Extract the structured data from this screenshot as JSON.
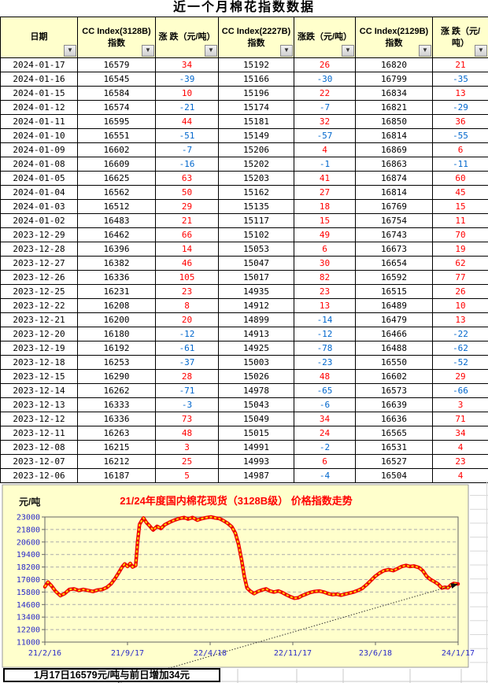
{
  "page": {
    "title": "近一个月棉花指数数据"
  },
  "table": {
    "columns": [
      "日期",
      "CC Index(3128B) 指数",
      "涨 跌（元/吨）",
      "CC Index(2227B) 指数",
      "涨跌（元/吨）",
      "CC Index(2129B) 指数",
      "涨 跌（元/吨）"
    ],
    "rows": [
      [
        "2024-01-17",
        16579,
        34,
        15192,
        26,
        16820,
        21
      ],
      [
        "2024-01-16",
        16545,
        -39,
        15166,
        -30,
        16799,
        -35
      ],
      [
        "2024-01-15",
        16584,
        10,
        15196,
        22,
        16834,
        13
      ],
      [
        "2024-01-12",
        16574,
        -21,
        15174,
        -7,
        16821,
        -29
      ],
      [
        "2024-01-11",
        16595,
        44,
        15181,
        32,
        16850,
        36
      ],
      [
        "2024-01-10",
        16551,
        -51,
        15149,
        -57,
        16814,
        -55
      ],
      [
        "2024-01-09",
        16602,
        -7,
        15206,
        4,
        16869,
        6
      ],
      [
        "2024-01-08",
        16609,
        -16,
        15202,
        -1,
        16863,
        -11
      ],
      [
        "2024-01-05",
        16625,
        63,
        15203,
        41,
        16874,
        60
      ],
      [
        "2024-01-04",
        16562,
        50,
        15162,
        27,
        16814,
        45
      ],
      [
        "2024-01-03",
        16512,
        29,
        15135,
        18,
        16769,
        15
      ],
      [
        "2024-01-02",
        16483,
        21,
        15117,
        15,
        16754,
        11
      ],
      [
        "2023-12-29",
        16462,
        66,
        15102,
        49,
        16743,
        70
      ],
      [
        "2023-12-28",
        16396,
        14,
        15053,
        6,
        16673,
        19
      ],
      [
        "2023-12-27",
        16382,
        46,
        15047,
        30,
        16654,
        62
      ],
      [
        "2023-12-26",
        16336,
        105,
        15017,
        82,
        16592,
        77
      ],
      [
        "2023-12-25",
        16231,
        23,
        14935,
        23,
        16515,
        26
      ],
      [
        "2023-12-22",
        16208,
        8,
        14912,
        13,
        16489,
        10
      ],
      [
        "2023-12-21",
        16200,
        20,
        14899,
        -14,
        16479,
        13
      ],
      [
        "2023-12-20",
        16180,
        -12,
        14913,
        -12,
        16466,
        -22
      ],
      [
        "2023-12-19",
        16192,
        -61,
        14925,
        -78,
        16488,
        -62
      ],
      [
        "2023-12-18",
        16253,
        -37,
        15003,
        -23,
        16550,
        -52
      ],
      [
        "2023-12-15",
        16290,
        28,
        15026,
        48,
        16602,
        29
      ],
      [
        "2023-12-14",
        16262,
        -71,
        14978,
        -65,
        16573,
        -66
      ],
      [
        "2023-12-13",
        16333,
        -3,
        15043,
        -6,
        16639,
        3
      ],
      [
        "2023-12-12",
        16336,
        73,
        15049,
        34,
        16636,
        71
      ],
      [
        "2023-12-11",
        16263,
        48,
        15015,
        24,
        16565,
        34
      ],
      [
        "2023-12-08",
        16215,
        3,
        14991,
        -2,
        16531,
        4
      ],
      [
        "2023-12-07",
        16212,
        25,
        14993,
        6,
        16527,
        23
      ],
      [
        "2023-12-06",
        16187,
        5,
        14987,
        -4,
        16504,
        4
      ]
    ]
  },
  "footer": {
    "note": "1月17日16579元/吨与前日增加34元"
  },
  "colors": {
    "positive": "#FF0000",
    "negative": "#0066CC",
    "header_bg": "#FFFFCC",
    "chart_bg": "#FFFFCC",
    "chart_title": "#FF0000",
    "axis_label": "#2929C8",
    "line": "#EE0000",
    "line_dash": "#FFD700"
  },
  "chart_data": {
    "type": "line",
    "title": "21/24年度国内棉花现货（3128B级） 价格指数走势",
    "ylabel": "元/吨",
    "ylim": [
      11000,
      23000
    ],
    "ytick_step": 1200,
    "xtick_labels": [
      "21/2/16",
      "21/9/17",
      "22/4/18",
      "22/11/17",
      "23/6/18",
      "24/1/17"
    ],
    "x_range": [
      "2021-02-16",
      "2024-01-17"
    ],
    "grid": true,
    "legend": "none",
    "annotation": {
      "text": "1月17日16579元/吨与前日增加34元",
      "arrow_to_last_point": true
    },
    "series": [
      {
        "name": "CC Index(3128B)",
        "points": [
          [
            "2021-02-16",
            16300
          ],
          [
            "2021-02-24",
            16750
          ],
          [
            "2021-03-05",
            16400
          ],
          [
            "2021-03-15",
            15900
          ],
          [
            "2021-03-28",
            15450
          ],
          [
            "2021-04-08",
            15650
          ],
          [
            "2021-04-20",
            16050
          ],
          [
            "2021-05-02",
            16100
          ],
          [
            "2021-05-14",
            15950
          ],
          [
            "2021-05-26",
            16050
          ],
          [
            "2021-06-08",
            15950
          ],
          [
            "2021-06-20",
            15850
          ],
          [
            "2021-07-02",
            16000
          ],
          [
            "2021-07-14",
            16050
          ],
          [
            "2021-07-26",
            16250
          ],
          [
            "2021-08-06",
            16600
          ],
          [
            "2021-08-16",
            17100
          ],
          [
            "2021-08-26",
            17700
          ],
          [
            "2021-09-03",
            18200
          ],
          [
            "2021-09-10",
            18500
          ],
          [
            "2021-09-17",
            18250
          ],
          [
            "2021-09-24",
            18550
          ],
          [
            "2021-09-30",
            18200
          ],
          [
            "2021-10-08",
            18350
          ],
          [
            "2021-10-13",
            20600
          ],
          [
            "2021-10-18",
            22300
          ],
          [
            "2021-10-23",
            22600
          ],
          [
            "2021-10-28",
            22900
          ],
          [
            "2021-11-05",
            22450
          ],
          [
            "2021-11-13",
            22150
          ],
          [
            "2021-11-22",
            21750
          ],
          [
            "2021-12-02",
            22100
          ],
          [
            "2021-12-12",
            21900
          ],
          [
            "2021-12-22",
            22250
          ],
          [
            "2022-01-04",
            22500
          ],
          [
            "2022-01-16",
            22700
          ],
          [
            "2022-01-28",
            22850
          ],
          [
            "2022-02-10",
            22950
          ],
          [
            "2022-02-20",
            22800
          ],
          [
            "2022-03-04",
            22950
          ],
          [
            "2022-03-16",
            22700
          ],
          [
            "2022-03-28",
            22850
          ],
          [
            "2022-04-10",
            22950
          ],
          [
            "2022-04-20",
            23000
          ],
          [
            "2022-05-02",
            22900
          ],
          [
            "2022-05-12",
            22850
          ],
          [
            "2022-05-22",
            22650
          ],
          [
            "2022-06-02",
            22400
          ],
          [
            "2022-06-13",
            22050
          ],
          [
            "2022-06-22",
            21450
          ],
          [
            "2022-06-30",
            20400
          ],
          [
            "2022-07-08",
            18900
          ],
          [
            "2022-07-15",
            17300
          ],
          [
            "2022-07-22",
            16200
          ],
          [
            "2022-07-30",
            15900
          ],
          [
            "2022-08-09",
            15650
          ],
          [
            "2022-08-19",
            15850
          ],
          [
            "2022-08-29",
            16000
          ],
          [
            "2022-09-09",
            16100
          ],
          [
            "2022-09-19",
            15900
          ],
          [
            "2022-09-29",
            15800
          ],
          [
            "2022-10-11",
            15900
          ],
          [
            "2022-10-21",
            15750
          ],
          [
            "2022-10-31",
            15550
          ],
          [
            "2022-11-11",
            15350
          ],
          [
            "2022-11-21",
            15200
          ],
          [
            "2022-12-01",
            15250
          ],
          [
            "2022-12-11",
            15450
          ],
          [
            "2022-12-21",
            15600
          ],
          [
            "2022-12-31",
            15750
          ],
          [
            "2023-01-12",
            15850
          ],
          [
            "2023-01-24",
            15900
          ],
          [
            "2023-02-05",
            15800
          ],
          [
            "2023-02-16",
            15650
          ],
          [
            "2023-02-27",
            15550
          ],
          [
            "2023-03-10",
            15600
          ],
          [
            "2023-03-21",
            15500
          ],
          [
            "2023-04-01",
            15600
          ],
          [
            "2023-04-12",
            15700
          ],
          [
            "2023-04-23",
            15800
          ],
          [
            "2023-05-04",
            15950
          ],
          [
            "2023-05-15",
            16150
          ],
          [
            "2023-05-26",
            16500
          ],
          [
            "2023-06-06",
            16900
          ],
          [
            "2023-06-17",
            17300
          ],
          [
            "2023-06-28",
            17600
          ],
          [
            "2023-07-10",
            17850
          ],
          [
            "2023-07-22",
            17950
          ],
          [
            "2023-08-03",
            17850
          ],
          [
            "2023-08-14",
            18050
          ],
          [
            "2023-08-25",
            18250
          ],
          [
            "2023-09-05",
            18350
          ],
          [
            "2023-09-15",
            18250
          ],
          [
            "2023-09-25",
            18300
          ],
          [
            "2023-10-08",
            18150
          ],
          [
            "2023-10-18",
            17850
          ],
          [
            "2023-10-28",
            17300
          ],
          [
            "2023-11-07",
            17000
          ],
          [
            "2023-11-17",
            16800
          ],
          [
            "2023-11-27",
            16550
          ],
          [
            "2023-12-06",
            16187
          ],
          [
            "2023-12-14",
            16262
          ],
          [
            "2023-12-22",
            16208
          ],
          [
            "2023-12-29",
            16462
          ],
          [
            "2024-01-05",
            16625
          ],
          [
            "2024-01-11",
            16595
          ],
          [
            "2024-01-17",
            16579
          ]
        ]
      }
    ]
  }
}
